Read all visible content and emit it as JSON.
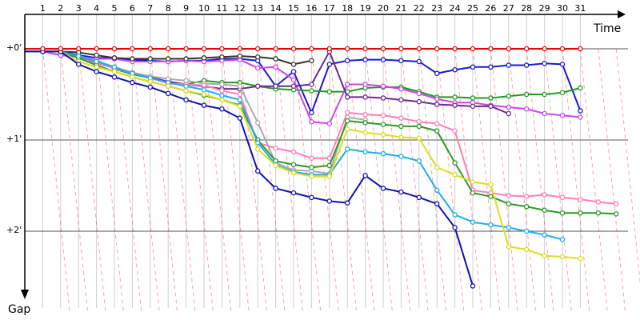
{
  "chart_data": {
    "type": "line",
    "xlabel": "Time",
    "ylabel": "Gap",
    "x_ticks": [
      "1",
      "2",
      "3",
      "4",
      "5",
      "6",
      "7",
      "8",
      "9",
      "10",
      "11",
      "12",
      "13",
      "14",
      "15",
      "16",
      "17",
      "18",
      "19",
      "20",
      "21",
      "22",
      "23",
      "24",
      "25",
      "26",
      "27",
      "28",
      "29",
      "30",
      "31"
    ],
    "y_ticks": [
      "+0'",
      "+1'",
      "+2'"
    ],
    "ylim_minutes": [
      0,
      2.7
    ],
    "grid": true,
    "leader_color": "#ee0000",
    "series": [
      {
        "color": "#ee0000",
        "y": [
          0.0,
          0.0,
          0.0,
          0.0,
          0.0,
          0.0,
          0.0,
          0.0,
          0.0,
          0.0,
          0.0,
          0.0,
          0.0,
          0.0,
          0.0,
          0.0,
          0.0,
          0.0,
          0.0,
          0.0,
          0.0,
          0.0,
          0.0,
          0.0,
          0.0,
          0.0,
          0.0,
          0.0,
          0.0,
          0.0,
          0.0,
          0.0
        ]
      },
      {
        "color": "#1a1acc",
        "y": [
          0.03,
          0.03,
          0.03,
          0.07,
          0.1,
          0.1,
          0.12,
          0.13,
          0.14,
          0.13,
          0.13,
          0.11,
          0.11,
          0.13,
          0.41,
          0.25,
          0.7,
          0.17,
          0.13,
          0.12,
          0.12,
          0.13,
          0.14,
          0.27,
          0.23,
          0.2,
          0.2,
          0.18,
          0.18,
          0.16,
          0.17,
          0.68
        ]
      },
      {
        "color": "#229922",
        "y": [
          0.03,
          0.03,
          0.07,
          0.08,
          0.12,
          0.22,
          0.28,
          0.32,
          0.36,
          0.39,
          0.35,
          0.37,
          0.37,
          0.41,
          0.44,
          0.45,
          0.46,
          0.47,
          0.47,
          0.43,
          0.42,
          0.42,
          0.47,
          0.53,
          0.53,
          0.54,
          0.54,
          0.52,
          0.5,
          0.5,
          0.48,
          0.43
        ]
      },
      {
        "color": "#cc44ee",
        "y": [
          0.03,
          0.03,
          0.07,
          0.09,
          0.11,
          0.11,
          0.14,
          0.14,
          0.14,
          0.13,
          0.14,
          0.13,
          0.12,
          0.21,
          0.2,
          0.34,
          0.8,
          0.82,
          0.39,
          0.39,
          0.41,
          0.44,
          0.49,
          0.55,
          0.59,
          0.59,
          0.62,
          0.64,
          0.66,
          0.71,
          0.73,
          0.75
        ]
      },
      {
        "color": "#6a2a90",
        "y": [
          0.03,
          0.03,
          0.03,
          0.08,
          0.16,
          0.21,
          0.27,
          0.31,
          0.36,
          0.39,
          0.41,
          0.44,
          0.44,
          0.41,
          0.41,
          0.41,
          0.39,
          0.03,
          0.53,
          0.53,
          0.54,
          0.56,
          0.58,
          0.61,
          0.62,
          0.63,
          0.63,
          0.71
        ]
      },
      {
        "color": "#aaaaaa",
        "y": [
          0.03,
          0.03,
          0.03,
          0.08,
          0.13,
          0.2,
          0.26,
          0.3,
          0.33,
          0.35,
          0.38,
          0.39,
          0.41,
          0.81,
          1.25,
          1.33,
          1.34,
          1.37,
          0.75,
          0.78
        ]
      },
      {
        "color": "#333333",
        "y": [
          0.03,
          0.03,
          0.03,
          0.04,
          0.07,
          0.1,
          0.11,
          0.11,
          0.11,
          0.11,
          0.1,
          0.09,
          0.08,
          0.09,
          0.11,
          0.17,
          0.13
        ]
      },
      {
        "color": "#ff7fb8",
        "y": [
          0.03,
          0.03,
          0.03,
          0.1,
          0.16,
          0.21,
          0.27,
          0.32,
          0.38,
          0.39,
          0.4,
          0.46,
          0.5,
          1.03,
          1.09,
          1.13,
          1.2,
          1.2,
          0.7,
          0.72,
          0.73,
          0.76,
          0.8,
          0.82,
          0.9,
          1.55,
          1.58,
          1.61,
          1.62,
          1.6,
          1.63,
          1.65,
          1.68,
          1.7
        ]
      },
      {
        "color": "#2a9a2a",
        "y": [
          0.03,
          0.03,
          0.03,
          0.1,
          0.18,
          0.25,
          0.31,
          0.36,
          0.41,
          0.46,
          0.51,
          0.56,
          0.62,
          1.0,
          1.23,
          1.27,
          1.3,
          1.28,
          0.79,
          0.81,
          0.83,
          0.85,
          0.85,
          0.9,
          1.25,
          1.58,
          1.62,
          1.7,
          1.73,
          1.77,
          1.8,
          1.8,
          1.8,
          1.81
        ]
      },
      {
        "color": "#22aaee",
        "y": [
          0.03,
          0.03,
          0.03,
          0.08,
          0.14,
          0.2,
          0.27,
          0.32,
          0.37,
          0.41,
          0.45,
          0.51,
          0.56,
          1.03,
          1.27,
          1.35,
          1.38,
          1.38,
          1.1,
          1.13,
          1.15,
          1.18,
          1.23,
          1.55,
          1.82,
          1.9,
          1.93,
          1.96,
          2.0,
          2.04,
          2.09
        ]
      },
      {
        "color": "#dddd22",
        "y": [
          0.03,
          0.03,
          0.03,
          0.14,
          0.2,
          0.25,
          0.31,
          0.36,
          0.41,
          0.46,
          0.5,
          0.56,
          0.63,
          1.1,
          1.28,
          1.36,
          1.4,
          1.4,
          0.88,
          0.92,
          0.94,
          0.97,
          0.98,
          1.3,
          1.38,
          1.46,
          1.49,
          2.17,
          2.2,
          2.27,
          2.28,
          2.3
        ]
      },
      {
        "color": "#1010aa",
        "y": [
          0.03,
          0.03,
          0.03,
          0.17,
          0.25,
          0.31,
          0.37,
          0.42,
          0.49,
          0.56,
          0.62,
          0.66,
          0.76,
          1.34,
          1.53,
          1.58,
          1.63,
          1.67,
          1.69,
          1.39,
          1.53,
          1.57,
          1.63,
          1.7,
          1.96,
          2.6
        ]
      }
    ]
  }
}
